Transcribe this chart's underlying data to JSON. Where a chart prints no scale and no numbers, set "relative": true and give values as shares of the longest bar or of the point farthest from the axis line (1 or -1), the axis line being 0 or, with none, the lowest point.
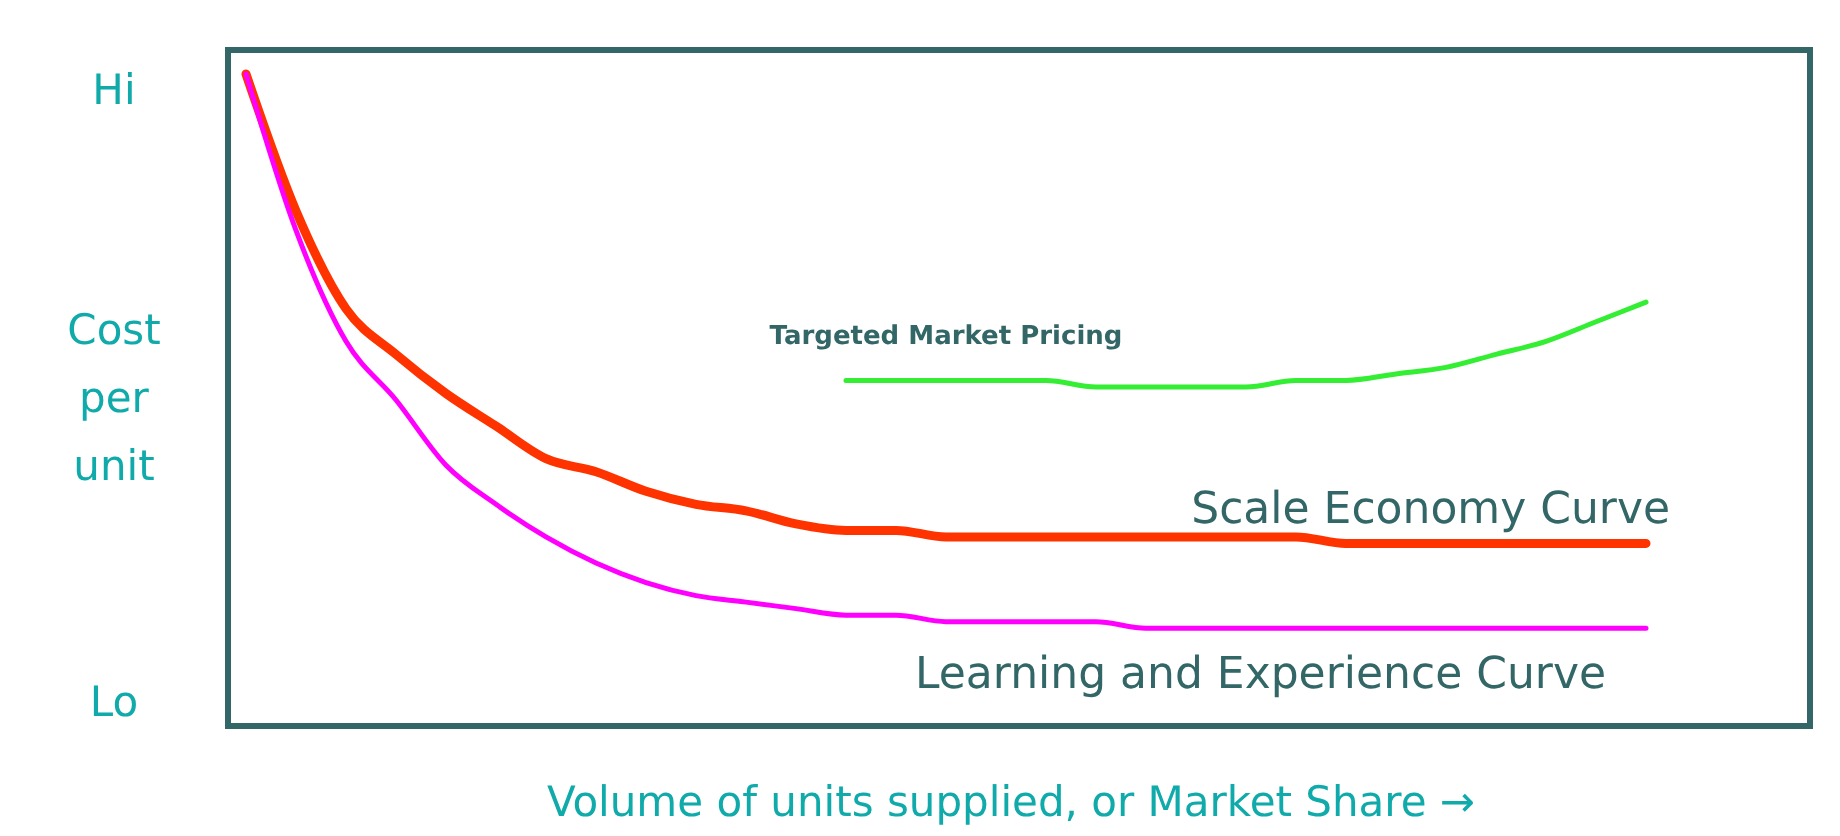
{
  "chart_data": {
    "type": "line",
    "relative": true,
    "ylabel": "Cost per unit",
    "xlabel": "Volume of units supplied, or Market Share →",
    "annotations": [
      "Hi",
      "Lo"
    ],
    "marker": "none",
    "line_style": "solid",
    "categories": [
      null,
      null,
      null,
      null,
      null,
      null,
      null,
      null,
      null,
      null,
      null,
      null,
      null,
      null,
      null,
      null,
      null,
      null,
      null,
      null,
      null,
      null,
      null,
      null,
      null,
      null,
      null,
      null,
      null
    ],
    "series": [
      {
        "name": "Targeted Market Pricing",
        "color": "#33ee33",
        "values": [
          null,
          null,
          null,
          null,
          null,
          null,
          null,
          null,
          null,
          null,
          null,
          null,
          0.53,
          0.53,
          0.53,
          0.53,
          0.53,
          0.52,
          0.52,
          0.52,
          0.52,
          0.53,
          0.53,
          0.54,
          0.55,
          0.57,
          0.59,
          0.62,
          0.65
        ]
      },
      {
        "name": "Scale Economy Curve",
        "color": "#ff3300",
        "values": [
          1,
          0.79,
          0.64,
          0.57,
          0.51,
          0.46,
          0.41,
          0.39,
          0.36,
          0.34,
          0.33,
          0.31,
          0.3,
          0.3,
          0.29,
          0.29,
          0.29,
          0.29,
          0.29,
          0.29,
          0.29,
          0.29,
          0.28,
          0.28,
          0.28,
          0.28,
          0.28,
          0.28,
          0.28
        ]
      },
      {
        "name": "Learning and Experience Curve",
        "color": "#ff00ff",
        "values": [
          1,
          0.76,
          0.59,
          0.5,
          0.4,
          0.34,
          0.29,
          0.25,
          0.22,
          0.2,
          0.19,
          0.18,
          0.17,
          0.17,
          0.16,
          0.16,
          0.16,
          0.16,
          0.15,
          0.15,
          0.15,
          0.15,
          0.15,
          0.15,
          0.15,
          0.15,
          0.15,
          0.15,
          0.15
        ]
      }
    ]
  }
}
